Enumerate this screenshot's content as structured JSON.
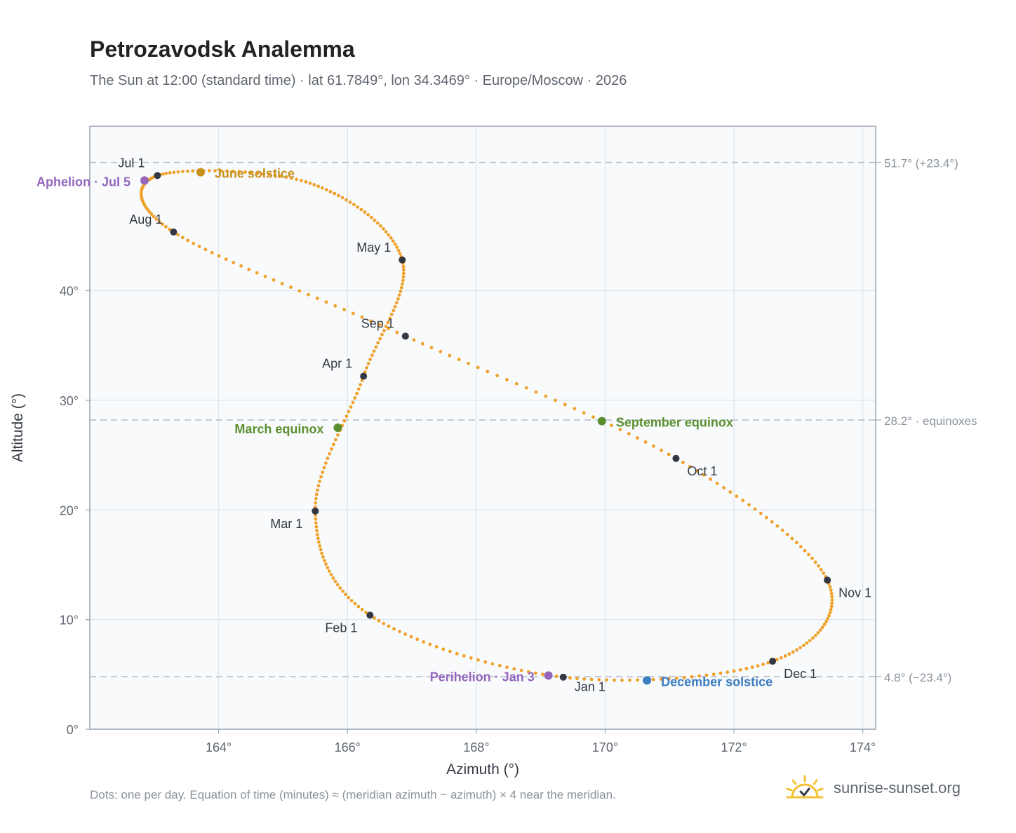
{
  "header": {
    "title": "Petrozavodsk Analemma",
    "subtitle": "The Sun at 12:00 (standard time) · lat 61.7849°, lon 34.3469° · Europe/Moscow · 2026"
  },
  "footer": {
    "note": "Dots: one per day. Equation of time (minutes) ≈ (meridian azimuth − azimuth) × 4 near the meridian.",
    "brand": "sunrise-sunset.org"
  },
  "chart_data": {
    "type": "scatter",
    "xlabel": "Azimuth (°)",
    "ylabel": "Altitude (°)",
    "xlim": [
      162.0,
      174.2
    ],
    "ylim": [
      0,
      55
    ],
    "xticks": [
      "164°",
      "166°",
      "168°",
      "170°",
      "172°",
      "174°"
    ],
    "yticks": [
      "0°",
      "10°",
      "20°",
      "30°",
      "40°"
    ],
    "grid": true,
    "reference_lines": [
      {
        "y": 51.7,
        "label": "51.7° (+23.4°)"
      },
      {
        "y": 28.2,
        "label": "28.2° · equinoxes"
      },
      {
        "y": 4.8,
        "label": "4.8° (−23.4°)"
      }
    ],
    "daily_path": [
      [
        169.35,
        4.75
      ],
      [
        166.35,
        10.4
      ],
      [
        165.5,
        19.9
      ],
      [
        166.25,
        32.2
      ],
      [
        166.85,
        42.8
      ],
      [
        165.42,
        49.8
      ],
      [
        163.05,
        50.5
      ],
      [
        163.3,
        45.35
      ],
      [
        166.9,
        35.85
      ],
      [
        171.1,
        24.7
      ],
      [
        173.45,
        13.6
      ],
      [
        172.6,
        6.2
      ],
      [
        169.35,
        4.75
      ]
    ],
    "month_markers": [
      {
        "label": "Jan 1",
        "x": 169.35,
        "y": 4.75
      },
      {
        "label": "Feb 1",
        "x": 166.35,
        "y": 10.4
      },
      {
        "label": "Mar 1",
        "x": 165.5,
        "y": 19.9
      },
      {
        "label": "Apr 1",
        "x": 166.25,
        "y": 32.2
      },
      {
        "label": "May 1",
        "x": 166.85,
        "y": 42.8
      },
      {
        "label": "Jul 1",
        "x": 163.05,
        "y": 50.5
      },
      {
        "label": "Aug 1",
        "x": 163.3,
        "y": 45.35
      },
      {
        "label": "Sep 1",
        "x": 166.9,
        "y": 35.85
      },
      {
        "label": "Oct 1",
        "x": 171.1,
        "y": 24.7
      },
      {
        "label": "Nov 1",
        "x": 173.45,
        "y": 13.6
      },
      {
        "label": "Dec 1",
        "x": 172.6,
        "y": 6.2
      }
    ],
    "events": [
      {
        "label": "June solstice",
        "x": 163.72,
        "y": 50.8,
        "color": "#c8901a"
      },
      {
        "label": "Aphelion · Jul 5",
        "x": 162.85,
        "y": 50.05,
        "color": "#9467bd"
      },
      {
        "label": "March equinox",
        "x": 165.85,
        "y": 27.5,
        "color": "#5a8f2e"
      },
      {
        "label": "September equinox",
        "x": 169.95,
        "y": 28.1,
        "color": "#5a8f2e"
      },
      {
        "label": "Perihelion · Jan 3",
        "x": 169.12,
        "y": 4.9,
        "color": "#9467bd"
      },
      {
        "label": "December solstice",
        "x": 170.65,
        "y": 4.45,
        "color": "#3b7dbf"
      }
    ],
    "colors": {
      "path": "#f0a12a",
      "marker": "#333842",
      "grid": "#e3e8ee",
      "plot_bg": "#f8fafc",
      "reference": "#b4bcc6"
    }
  }
}
